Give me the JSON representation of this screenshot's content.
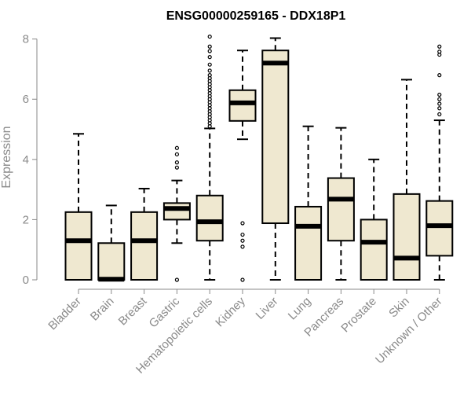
{
  "chart_data": {
    "type": "boxplot",
    "title": "ENSG00000259165 - DDX18P1",
    "xlabel": "",
    "ylabel": "Expression",
    "ylim": [
      0,
      8.2
    ],
    "yticks": [
      0,
      2,
      4,
      6,
      8
    ],
    "box_fill": "#efe8d0",
    "line_color": "#000000",
    "axis_color": "#8a8a8a",
    "categories": [
      "Bladder",
      "Brain",
      "Breast",
      "Gastric",
      "Hematopoietic cells",
      "Kidney",
      "Liver",
      "Lung",
      "Pancreas",
      "Prostate",
      "Skin",
      "Unknown / Other"
    ],
    "boxes": [
      {
        "name": "Bladder",
        "min": 0,
        "q1": 0,
        "median": 1.3,
        "q3": 2.25,
        "max": 4.85,
        "outliers": []
      },
      {
        "name": "Brain",
        "min": 0,
        "q1": 0,
        "median": 0.02,
        "q3": 1.22,
        "max": 2.47,
        "outliers": []
      },
      {
        "name": "Breast",
        "min": 0,
        "q1": 0,
        "median": 1.3,
        "q3": 2.25,
        "max": 3.03,
        "outliers": []
      },
      {
        "name": "Gastric",
        "min": 1.22,
        "q1": 2.0,
        "median": 2.37,
        "q3": 2.55,
        "max": 3.3,
        "outliers": [
          0,
          3.73,
          3.9,
          4.17,
          4.38
        ]
      },
      {
        "name": "Hematopoietic cells",
        "min": 0,
        "q1": 1.3,
        "median": 1.93,
        "q3": 2.8,
        "max": 5.03,
        "outliers": [
          5.1,
          5.2,
          5.3,
          5.4,
          5.5,
          5.6,
          5.7,
          5.8,
          5.9,
          6.0,
          6.1,
          6.2,
          6.3,
          6.4,
          6.5,
          6.6,
          6.7,
          6.8,
          6.95,
          7.15,
          7.4,
          7.6,
          7.75,
          8.08
        ]
      },
      {
        "name": "Kidney",
        "min": 4.67,
        "q1": 5.28,
        "median": 5.88,
        "q3": 6.3,
        "max": 7.62,
        "outliers": [
          0,
          1.1,
          1.3,
          1.5,
          1.88
        ]
      },
      {
        "name": "Liver",
        "min": 0,
        "q1": 1.88,
        "median": 7.2,
        "q3": 7.62,
        "max": 8.03,
        "outliers": []
      },
      {
        "name": "Lung",
        "min": 0,
        "q1": 0,
        "median": 1.78,
        "q3": 2.43,
        "max": 5.1,
        "outliers": []
      },
      {
        "name": "Pancreas",
        "min": 0,
        "q1": 1.3,
        "median": 2.68,
        "q3": 3.38,
        "max": 5.05,
        "outliers": []
      },
      {
        "name": "Prostate",
        "min": 0,
        "q1": 0,
        "median": 1.25,
        "q3": 2.0,
        "max": 4.0,
        "outliers": []
      },
      {
        "name": "Skin",
        "min": 0,
        "q1": 0,
        "median": 0.72,
        "q3": 2.85,
        "max": 6.65,
        "outliers": []
      },
      {
        "name": "Unknown / Other",
        "min": 0,
        "q1": 0.8,
        "median": 1.8,
        "q3": 2.62,
        "max": 5.3,
        "outliers": [
          5.5,
          5.7,
          5.85,
          6.0,
          6.15,
          6.8,
          7.48,
          7.58,
          7.75
        ]
      }
    ]
  }
}
